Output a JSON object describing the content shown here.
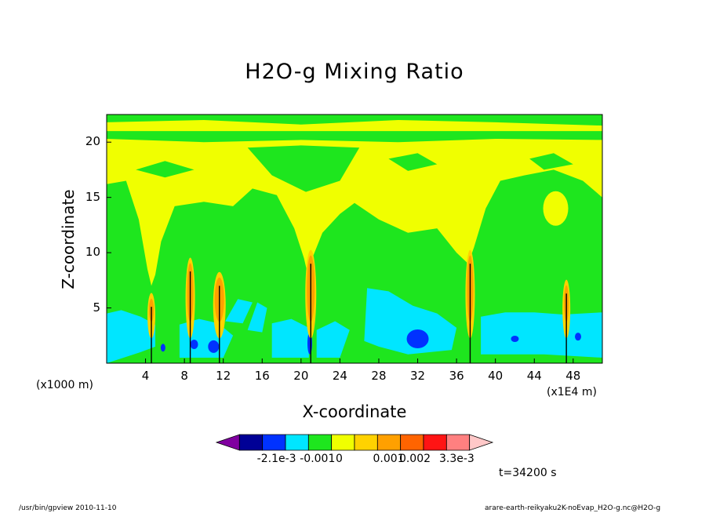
{
  "chart_data": {
    "type": "heatmap",
    "title": "H2O-g Mixing Ratio",
    "xlabel": "X-coordinate",
    "ylabel": "Z-coordinate",
    "x_unit_left": "(x1000 m)",
    "x_unit_right": "(x1E4 m)",
    "xticks": [
      "4",
      "8",
      "12",
      "16",
      "20",
      "24",
      "28",
      "32",
      "36",
      "40",
      "44",
      "48"
    ],
    "yticks": [
      "5",
      "10",
      "15",
      "20"
    ],
    "xlim": [
      0,
      51
    ],
    "ylim": [
      0,
      22.5
    ],
    "colorbar": {
      "colors": [
        "#8000a0",
        "#000096",
        "#0032ff",
        "#00e6ff",
        "#1ee61e",
        "#f0ff00",
        "#ffd200",
        "#ffa000",
        "#ff6400",
        "#ff1414",
        "#ff8080",
        "#ffc8c8"
      ],
      "labels": [
        "-2.1e-3",
        "-0.001",
        "0",
        "0.001",
        "0.002",
        "3.3e-3"
      ]
    },
    "time_label": "t=34200 s"
  },
  "footer": {
    "left": "/usr/bin/gpview   2010-11-10",
    "right": "arare-earth-reikyaku2K-noEvap_H2O-g.nc@H2O-g"
  }
}
